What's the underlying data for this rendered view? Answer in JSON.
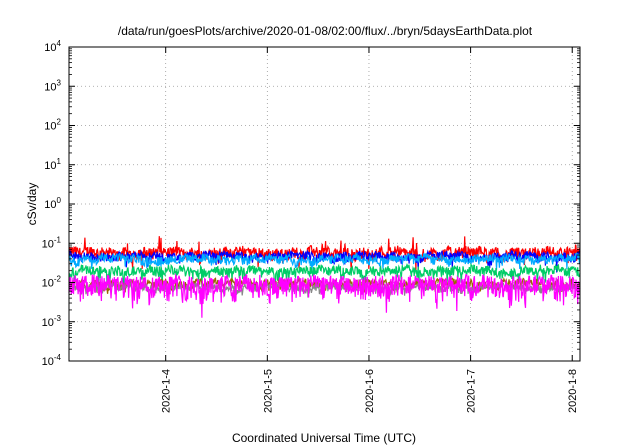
{
  "chart_data": {
    "type": "line",
    "title": "/data/run/goesPlots/archive/2020-01-08/02:00/flux/../bryn/5daysEarthData.plot",
    "xlabel": "Coordinated Universal Time (UTC)",
    "ylabel": "cSv/day",
    "yscale": "log",
    "ylim": [
      0.0001,
      10000
    ],
    "xlim": [
      "2020-01-03T01:10",
      "2020-01-08T01:50"
    ],
    "grid": true,
    "y_ticks": [
      {
        "value": 0.0001,
        "base": "10",
        "exp": "-4"
      },
      {
        "value": 0.001,
        "base": "10",
        "exp": "-3"
      },
      {
        "value": 0.01,
        "base": "10",
        "exp": "-2"
      },
      {
        "value": 0.1,
        "base": "10",
        "exp": "-1"
      },
      {
        "value": 1,
        "base": "10",
        "exp": "0"
      },
      {
        "value": 10,
        "base": "10",
        "exp": "1"
      },
      {
        "value": 100,
        "base": "10",
        "exp": "2"
      },
      {
        "value": 1000,
        "base": "10",
        "exp": "3"
      },
      {
        "value": 10000,
        "base": "10",
        "exp": "4"
      }
    ],
    "x_ticks": [
      {
        "value": "2020-01-04T00:00",
        "label": "2020-1-4"
      },
      {
        "value": "2020-01-05T00:00",
        "label": "2020-1-5"
      },
      {
        "value": "2020-01-06T00:00",
        "label": "2020-1-6"
      },
      {
        "value": "2020-01-07T00:00",
        "label": "2020-1-7"
      },
      {
        "value": "2020-01-08T00:00",
        "label": "2020-1-8"
      }
    ],
    "series": [
      {
        "color": "#ff0000",
        "base": 0.058,
        "spread": 0.35,
        "dip": 0.55
      },
      {
        "color": "#0000ff",
        "base": 0.047,
        "spread": 0.25,
        "dip": 0.45
      },
      {
        "color": "#00aaff",
        "base": 0.04,
        "spread": 0.25,
        "dip": 0.4
      },
      {
        "color": "#00cc66",
        "base": 0.02,
        "spread": 0.3,
        "dip": 0.6
      },
      {
        "color": "#996600",
        "base": 0.0095,
        "spread": 0.25,
        "dip": 0.35
      },
      {
        "color": "#888888",
        "base": 0.0075,
        "spread": 0.2,
        "dip": 0.3
      },
      {
        "color": "#ff00ff",
        "base": 0.009,
        "spread": 0.65,
        "dip": 0.5
      }
    ]
  }
}
